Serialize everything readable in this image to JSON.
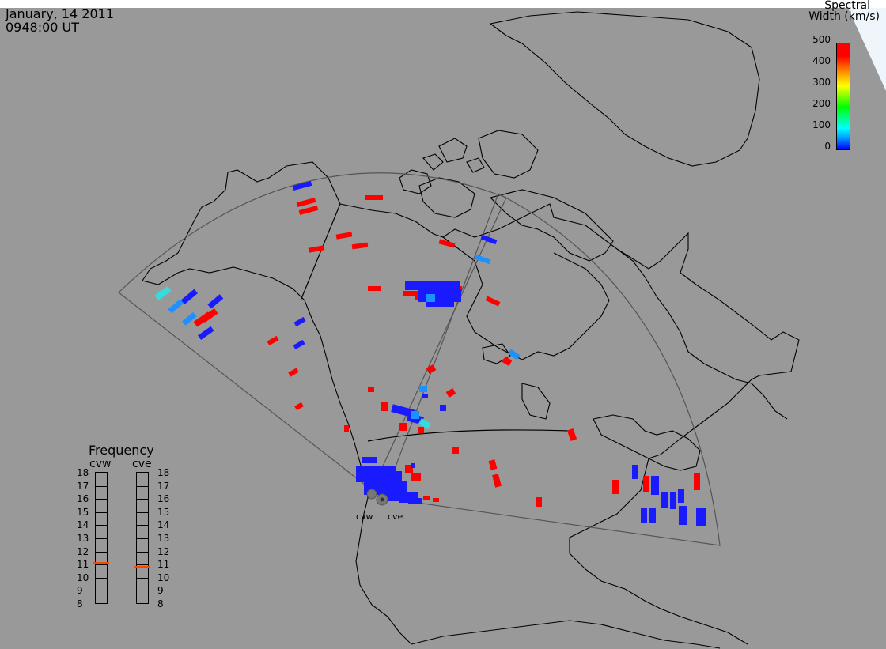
{
  "header": {
    "date": "January, 14 2011",
    "time": "0948:00 UT"
  },
  "colorbar": {
    "title_line1": "Spectral",
    "title_line2": "Width (km/s)",
    "ticks": [
      "500",
      "400",
      "300",
      "200",
      "100",
      "0"
    ],
    "range": [
      0,
      500
    ]
  },
  "frequency_panel": {
    "title": "Frequency",
    "radars": [
      {
        "name": "cvw",
        "value": 10.9
      },
      {
        "name": "cve",
        "value": 10.6
      }
    ],
    "ticks": [
      "18",
      "17",
      "16",
      "15",
      "14",
      "13",
      "12",
      "11",
      "10",
      "9",
      "8"
    ]
  },
  "radar_sites": [
    {
      "name": "cvw"
    },
    {
      "name": "cve"
    }
  ],
  "colors": {
    "background": "#999999",
    "echo_red": "#ff0000",
    "echo_blue": "#1a1aff",
    "echo_lightblue": "#1e90ff",
    "echo_cyan": "#33dddd",
    "freq_marker": "#ff4400"
  }
}
